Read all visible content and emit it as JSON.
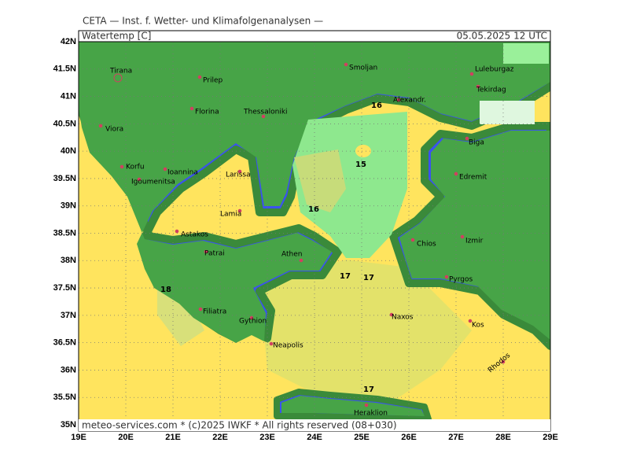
{
  "header": {
    "title": "CETA — Inst. f. Wetter- und Klimafolgenanalysen —"
  },
  "map": {
    "variable": "Watertemp [C]",
    "valid_time": "05.05.2025 12 UTC",
    "credit": "meteo-services.com * (c)2025 IWKF * All rights reserved (08+030)",
    "lat_ticks": [
      {
        "value": 42,
        "label": "42N"
      },
      {
        "value": 41.5,
        "label": "41.5N"
      },
      {
        "value": 41,
        "label": "41N"
      },
      {
        "value": 40.5,
        "label": "40.5N"
      },
      {
        "value": 40,
        "label": "40N"
      },
      {
        "value": 39.5,
        "label": "39.5N"
      },
      {
        "value": 39,
        "label": "39N"
      },
      {
        "value": 38.5,
        "label": "38.5N"
      },
      {
        "value": 38,
        "label": "38N"
      },
      {
        "value": 37.5,
        "label": "37.5N"
      },
      {
        "value": 37,
        "label": "37N"
      },
      {
        "value": 36.5,
        "label": "36.5N"
      },
      {
        "value": 36,
        "label": "36N"
      },
      {
        "value": 35.5,
        "label": "35.5N"
      },
      {
        "value": 35,
        "label": "35N"
      }
    ],
    "lon_ticks": [
      {
        "value": 19,
        "label": "19E"
      },
      {
        "value": 20,
        "label": "20E"
      },
      {
        "value": 21,
        "label": "21E"
      },
      {
        "value": 22,
        "label": "22E"
      },
      {
        "value": 23,
        "label": "23E"
      },
      {
        "value": 24,
        "label": "24E"
      },
      {
        "value": 25,
        "label": "25E"
      },
      {
        "value": 26,
        "label": "26E"
      },
      {
        "value": 27,
        "label": "27E"
      },
      {
        "value": 28,
        "label": "28E"
      },
      {
        "value": 29,
        "label": "29E"
      }
    ],
    "places": [
      "Tirana",
      "Prilep",
      "Smoljan",
      "Luleburgaz",
      "Tekirdag",
      "Alexandr.",
      "Florina",
      "Thessaloniki",
      "Viora",
      "Korfu",
      "Ioannina",
      "Igoumenitsa",
      "Larissa",
      "Biga",
      "Edremit",
      "Lamia",
      "Astakos",
      "Patrai",
      "Athen",
      "Chios",
      "Izmir",
      "Pyrgos",
      "Filiatra",
      "Gythion",
      "Naxos",
      "Kos",
      "Neapolis",
      "Rhodos",
      "Heraklion"
    ],
    "contour_labels": [
      16,
      15,
      16,
      17,
      17,
      18,
      17
    ]
  }
}
